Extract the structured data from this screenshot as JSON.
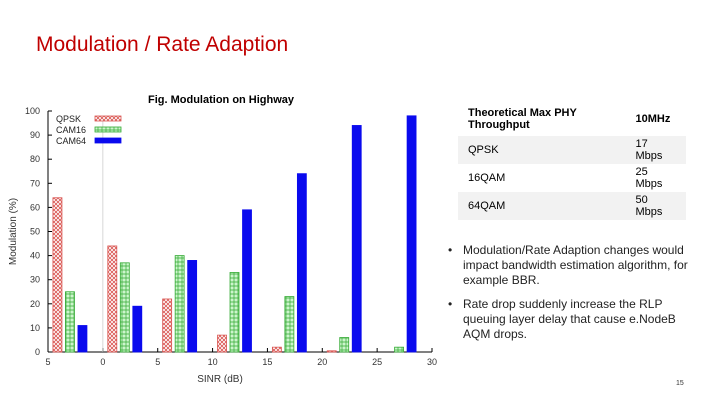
{
  "slide": {
    "title": "Modulation / Rate Adaption",
    "page_number": "15"
  },
  "figure": {
    "caption": "Fig. Modulation on Highway"
  },
  "chart_data": {
    "type": "bar",
    "title": "",
    "xlabel": "SINR (dB)",
    "ylabel": "Modulation (%)",
    "x_ticks": [
      "5",
      "0",
      "5",
      "10",
      "15",
      "20",
      "25",
      "30"
    ],
    "y_ticks": [
      "0",
      "10",
      "20",
      "30",
      "40",
      "50",
      "60",
      "70",
      "80",
      "90",
      "100"
    ],
    "xlim": [
      -5,
      30
    ],
    "ylim": [
      0,
      100
    ],
    "categories": [
      -3,
      2,
      7,
      12,
      17,
      22,
      27
    ],
    "series": [
      {
        "name": "QPSK",
        "values": [
          64,
          44,
          22,
          7,
          2,
          0.5,
          0
        ],
        "color": "#d9534f",
        "pattern": "crosshatch"
      },
      {
        "name": "CAM16",
        "values": [
          25,
          37,
          40,
          33,
          23,
          6,
          2
        ],
        "color": "#33aa33",
        "pattern": "grid"
      },
      {
        "name": "CAM64",
        "values": [
          11,
          19,
          38,
          59,
          74,
          94,
          98
        ],
        "color": "#0a0aee",
        "pattern": "solid"
      }
    ],
    "legend": "top-left",
    "grid": false
  },
  "table": {
    "headers": [
      "Theoretical Max PHY Throughput",
      "10MHz"
    ],
    "rows": [
      [
        "QPSK",
        "17 Mbps"
      ],
      [
        "16QAM",
        "25 Mbps"
      ],
      [
        "64QAM",
        "50 Mbps"
      ]
    ]
  },
  "bullets": [
    "Modulation/Rate Adaption changes would impact bandwidth estimation algorithm, for example BBR.",
    "Rate drop suddenly increase the RLP queuing layer delay that cause e.NodeB AQM drops."
  ],
  "bullet_symbol": "•"
}
